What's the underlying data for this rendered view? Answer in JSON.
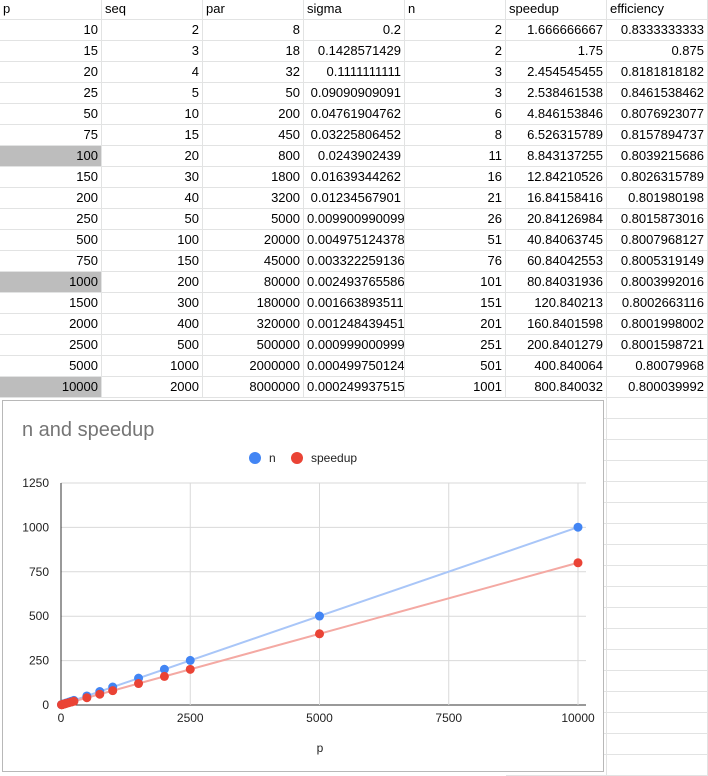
{
  "sheet": {
    "columns": [
      "p",
      "seq",
      "par",
      "sigma",
      "n",
      "speedup",
      "efficiency"
    ],
    "selected_rows": [
      6,
      12,
      17
    ],
    "rows": [
      [
        "10",
        "2",
        "8",
        "0.2",
        "2",
        "1.666666667",
        "0.8333333333"
      ],
      [
        "15",
        "3",
        "18",
        "0.1428571429",
        "2",
        "1.75",
        "0.875"
      ],
      [
        "20",
        "4",
        "32",
        "0.1111111111",
        "3",
        "2.454545455",
        "0.8181818182"
      ],
      [
        "25",
        "5",
        "50",
        "0.09090909091",
        "3",
        "2.538461538",
        "0.8461538462"
      ],
      [
        "50",
        "10",
        "200",
        "0.04761904762",
        "6",
        "4.846153846",
        "0.8076923077"
      ],
      [
        "75",
        "15",
        "450",
        "0.03225806452",
        "8",
        "6.526315789",
        "0.8157894737"
      ],
      [
        "100",
        "20",
        "800",
        "0.0243902439",
        "11",
        "8.843137255",
        "0.8039215686"
      ],
      [
        "150",
        "30",
        "1800",
        "0.01639344262",
        "16",
        "12.84210526",
        "0.8026315789"
      ],
      [
        "200",
        "40",
        "3200",
        "0.01234567901",
        "21",
        "16.84158416",
        "0.801980198"
      ],
      [
        "250",
        "50",
        "5000",
        "0.009900990099",
        "26",
        "20.84126984",
        "0.8015873016"
      ],
      [
        "500",
        "100",
        "20000",
        "0.004975124378",
        "51",
        "40.84063745",
        "0.8007968127"
      ],
      [
        "750",
        "150",
        "45000",
        "0.003322259136",
        "76",
        "60.84042553",
        "0.8005319149"
      ],
      [
        "1000",
        "200",
        "80000",
        "0.002493765586",
        "101",
        "80.84031936",
        "0.8003992016"
      ],
      [
        "1500",
        "300",
        "180000",
        "0.001663893511",
        "151",
        "120.840213",
        "0.8002663116"
      ],
      [
        "2000",
        "400",
        "320000",
        "0.001248439451",
        "201",
        "160.8401598",
        "0.8001998002"
      ],
      [
        "2500",
        "500",
        "500000",
        "0.0009990009990",
        "251",
        "200.8401279",
        "0.8001598721"
      ],
      [
        "5000",
        "1000",
        "2000000",
        "0.0004997501249",
        "501",
        "400.840064",
        "0.80079968"
      ],
      [
        "10000",
        "2000",
        "8000000",
        "0.0002499375156",
        "1001",
        "800.840032",
        "0.800039992"
      ]
    ]
  },
  "chart_data": {
    "type": "scatter",
    "title": "n and speedup",
    "xlabel": "p",
    "ylabel": "",
    "xlim": [
      0,
      10000
    ],
    "ylim": [
      0,
      1250
    ],
    "xticks": [
      0,
      2500,
      5000,
      7500,
      10000
    ],
    "yticks": [
      0,
      250,
      500,
      750,
      1000,
      1250
    ],
    "grid": true,
    "legend_position": "top",
    "x": [
      10,
      15,
      20,
      25,
      50,
      75,
      100,
      150,
      200,
      250,
      500,
      750,
      1000,
      1500,
      2000,
      2500,
      5000,
      10000
    ],
    "series": [
      {
        "name": "n",
        "color": "#4285f4",
        "trendline_color": "#a9c6f8",
        "values": [
          2,
          2,
          3,
          3,
          6,
          8,
          11,
          16,
          21,
          26,
          51,
          76,
          101,
          151,
          201,
          251,
          501,
          1001
        ]
      },
      {
        "name": "speedup",
        "color": "#ea4335",
        "trendline_color": "#f4a9a3",
        "values": [
          1.666666667,
          1.75,
          2.454545455,
          2.538461538,
          4.846153846,
          6.526315789,
          8.843137255,
          12.84210526,
          16.84158416,
          20.84126984,
          40.84063745,
          60.84042553,
          80.84031936,
          120.840213,
          160.8401598,
          200.8401279,
          400.840064,
          800.840032
        ]
      }
    ]
  }
}
